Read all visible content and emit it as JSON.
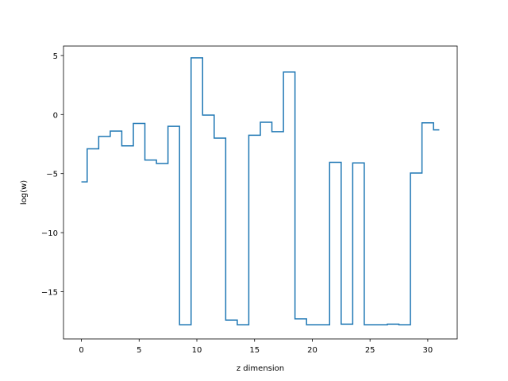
{
  "chart_data": {
    "type": "line",
    "drawstyle": "steps-mid",
    "title": "",
    "xlabel": "z dimension",
    "ylabel": "log(w)",
    "xlim": [
      -1.55,
      32.55
    ],
    "ylim": [
      -19.0,
      5.8
    ],
    "xticks": [
      0,
      5,
      10,
      15,
      20,
      25,
      30
    ],
    "yticks": [
      5,
      0,
      -5,
      -10,
      -15
    ],
    "ytick_labels": [
      "5",
      "0",
      "−5",
      "−10",
      "−15"
    ],
    "grid": false,
    "line_color": "#1f77b4",
    "series": [
      {
        "x": [
          0,
          1,
          2,
          3,
          4,
          5,
          6,
          7,
          8,
          9,
          10,
          11,
          12,
          13,
          14,
          15,
          16,
          17,
          18,
          19,
          20,
          21,
          22,
          23,
          24,
          25,
          26,
          27,
          28,
          29,
          30,
          31
        ],
        "values": [
          -5.7,
          -2.9,
          -1.85,
          -1.4,
          -2.65,
          -0.75,
          -3.85,
          -4.15,
          -1.0,
          -17.8,
          4.8,
          -0.05,
          -2.0,
          -17.4,
          -17.8,
          -1.75,
          -0.65,
          -1.45,
          3.6,
          -17.3,
          -17.8,
          -17.8,
          -4.05,
          -17.75,
          -4.1,
          -17.8,
          -17.8,
          -17.75,
          -17.8,
          -4.95,
          -0.7,
          -1.3
        ]
      }
    ]
  }
}
